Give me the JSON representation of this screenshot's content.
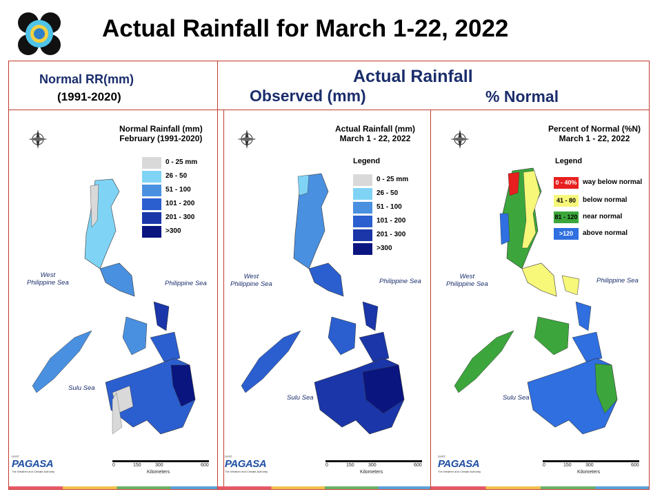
{
  "page": {
    "title": "Actual Rainfall for March 1-22, 2022"
  },
  "headers": {
    "normal": {
      "line1": "Normal RR(mm)",
      "line2": "(1991-2020)"
    },
    "actual": {
      "title": "Actual Rainfall",
      "observed": "Observed (mm)",
      "percent": "% Normal"
    }
  },
  "panels": [
    {
      "id": "normal",
      "title_line1": "Normal Rainfall (mm)",
      "title_line2": "February (1991-2020)",
      "legend_title": "",
      "legend": [
        {
          "label": "0 - 25 mm",
          "color": "#d9d9d9"
        },
        {
          "label": "26 - 50",
          "color": "#7fd4f5"
        },
        {
          "label": "51 - 100",
          "color": "#4a90e0"
        },
        {
          "label": "101 - 200",
          "color": "#2b5fcf"
        },
        {
          "label": "201 - 300",
          "color": "#1a36a8"
        },
        {
          "label": ">300",
          "color": "#0a1580"
        }
      ]
    },
    {
      "id": "actual",
      "title_line1": "Actual Rainfall (mm)",
      "title_line2": "March 1 - 22, 2022",
      "legend_title": "Legend",
      "legend": [
        {
          "label": "0 - 25 mm",
          "color": "#d9d9d9"
        },
        {
          "label": "26 - 50",
          "color": "#7fd4f5"
        },
        {
          "label": "51 - 100",
          "color": "#4a90e0"
        },
        {
          "label": "101 - 200",
          "color": "#2b5fcf"
        },
        {
          "label": "201 - 300",
          "color": "#1a36a8"
        },
        {
          "label": ">300",
          "color": "#0a1580"
        }
      ]
    },
    {
      "id": "percent",
      "title_line1": "Percent of Normal (%N)",
      "title_line2": "March 1 - 22, 2022",
      "legend_title": "Legend",
      "legend": [
        {
          "swatch": "0 - 40%",
          "label": "way below normal",
          "color": "#e81f1f"
        },
        {
          "swatch": "41 - 80",
          "label": "below normal",
          "color": "#f7f77a"
        },
        {
          "swatch": "81 - 120",
          "label": "near normal",
          "color": "#3ca63c"
        },
        {
          "swatch": ">120",
          "label": "above normal",
          "color": "#2f6fe0"
        }
      ]
    }
  ],
  "map_labels": {
    "west_sea_line1": "West",
    "west_sea_line2": "Philippine Sea",
    "east_sea": "Philippine Sea",
    "sulu_sea": "Sulu Sea",
    "compass_n": "N",
    "compass_s": "S",
    "compass_e": "E",
    "compass_w": "W"
  },
  "scale": {
    "ticks": [
      "0",
      "150",
      "300",
      "600"
    ],
    "unit": "Kilometers"
  },
  "brand": {
    "name": "PAGASA",
    "top": "DOST",
    "tagline": "The Weather and Climate Authority"
  },
  "colors": {
    "frame": "#c0392b",
    "header_text": "#1a2d6b",
    "bar_segments": [
      "#e8596a",
      "#f2c14e",
      "#6ab26a",
      "#5ba3dc"
    ]
  }
}
